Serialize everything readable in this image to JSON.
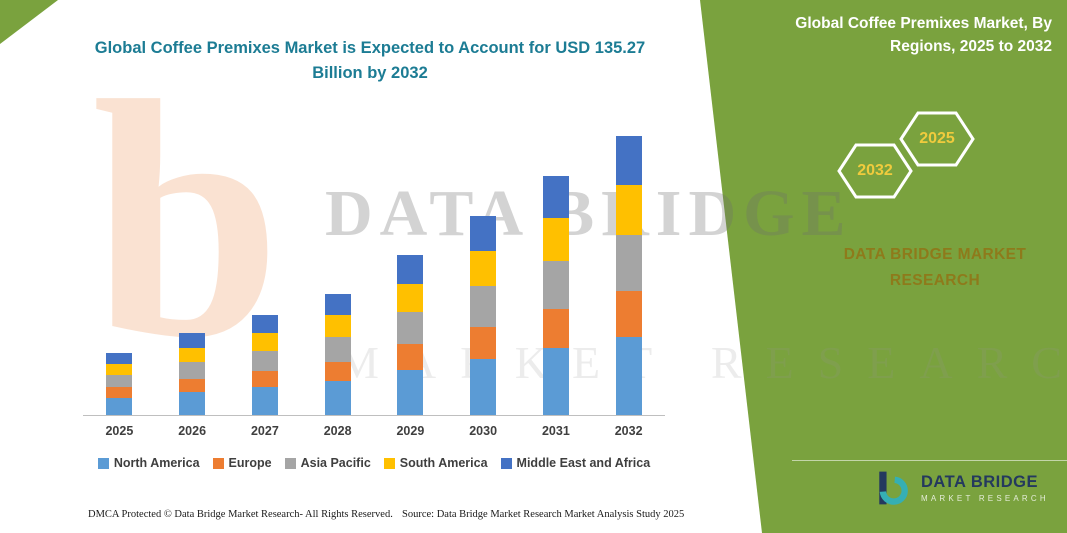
{
  "title": "Global Coffee Premixes Market is Expected to Account for USD 135.27 Billion by 2032",
  "panel": {
    "heading": "Global Coffee Premixes Market, By Regions, 2025 to 2032",
    "hex_left_year": "2032",
    "hex_right_year": "2025",
    "brand_line1": "DATA BRIDGE MARKET",
    "brand_line2": "RESEARCH",
    "logo_title": "DATA BRIDGE",
    "logo_subtitle": "MARKET RESEARCH"
  },
  "watermark": {
    "letter": "b",
    "line1": "DATA BRIDGE",
    "line2": "MARKET RESEARCH"
  },
  "footer": {
    "left": "DMCA Protected © Data Bridge Market Research-  All Rights Reserved.",
    "right": "Source: Data Bridge Market Research  Market Analysis Study 2025"
  },
  "colors": {
    "panel_green": "#7AA23E",
    "title_teal": "#1C7C94",
    "hex_year_yellow": "#F0CB3D",
    "brand_gold": "#8E7A1B",
    "watermark_orange": "#E97B30"
  },
  "chart_data": {
    "type": "bar",
    "stacked": true,
    "unit": "USD Billion",
    "categories": [
      "2025",
      "2026",
      "2027",
      "2028",
      "2029",
      "2030",
      "2031",
      "2032"
    ],
    "series": [
      {
        "name": "North America",
        "color": "#5B9BD5",
        "values": [
          8.5,
          11.2,
          13.6,
          16.4,
          21.7,
          27.1,
          32.5,
          37.9
        ]
      },
      {
        "name": "Europe",
        "color": "#ED7D31",
        "values": [
          4.9,
          6.4,
          7.8,
          9.5,
          12.5,
          15.7,
          18.8,
          22.0
        ]
      },
      {
        "name": "Asia Pacific",
        "color": "#A5A5A5",
        "values": [
          6.2,
          8.0,
          9.8,
          11.8,
          15.6,
          19.5,
          23.4,
          27.3
        ]
      },
      {
        "name": "South America",
        "color": "#FFC000",
        "values": [
          5.4,
          7.1,
          8.7,
          10.5,
          13.9,
          17.4,
          20.9,
          24.4
        ]
      },
      {
        "name": "Middle East and Africa",
        "color": "#4472C4",
        "values": [
          4.9,
          6.9,
          8.4,
          10.2,
          13.6,
          16.9,
          20.3,
          23.7
        ]
      }
    ],
    "totals_estimated": [
      29.9,
      39.6,
      48.3,
      58.4,
      77.3,
      96.6,
      115.9,
      135.3
    ],
    "ylim": [
      0,
      140
    ],
    "grid": false,
    "legend_position": "bottom"
  }
}
